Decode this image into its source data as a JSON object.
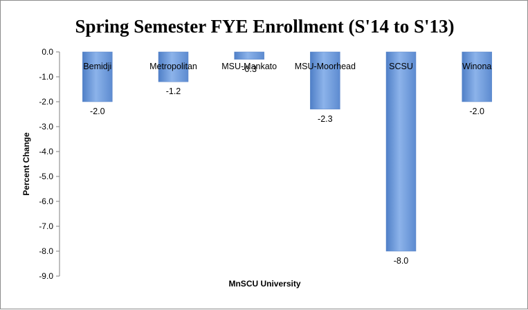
{
  "chart_data": {
    "type": "bar",
    "title": "Spring Semester FYE Enrollment (S'14 to S'13)",
    "xlabel": "MnSCU University",
    "ylabel": "Percent Change",
    "categories": [
      "Bemidji",
      "Metropolitan",
      "MSU-Mankato",
      "MSU-Moorhead",
      "SCSU",
      "Winona"
    ],
    "values": [
      -2.0,
      -1.2,
      -0.3,
      -2.3,
      -8.0,
      -2.0
    ],
    "value_labels": [
      "-2.0",
      "-1.2",
      "-0.3",
      "-2.3",
      "-8.0",
      "-2.0"
    ],
    "yticks": [
      "0.0",
      "-1.0",
      "-2.0",
      "-3.0",
      "-4.0",
      "-5.0",
      "-6.0",
      "-7.0",
      "-8.0",
      "-9.0"
    ],
    "ylim": [
      -9.0,
      0.0
    ],
    "grid": false,
    "legend": "none",
    "bar_color": "#6e9bd8"
  }
}
